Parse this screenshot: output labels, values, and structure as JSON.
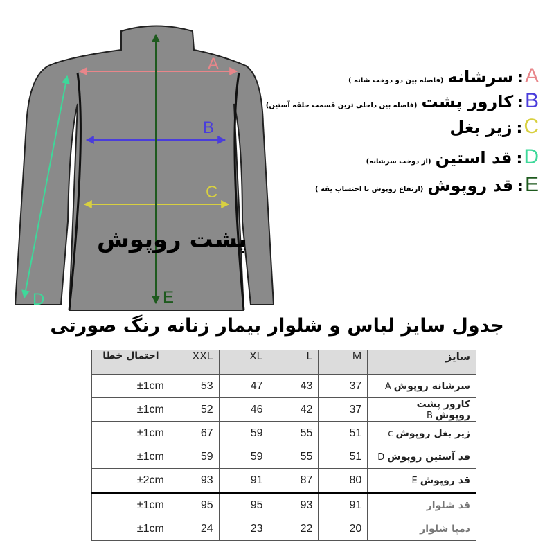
{
  "legend": [
    {
      "letter": "A",
      "name": "سرشانه",
      "note": "(فاصله بین دو دوخت شانه )",
      "color": "#e8868a"
    },
    {
      "letter": "B",
      "name": "کارور پشت",
      "note": "(فاصله بین داخلی ترین قسمت حلقه آستین)",
      "color": "#4a3ddb"
    },
    {
      "letter": "C",
      "name": "زیر بغل",
      "note": "",
      "color": "#d8d040"
    },
    {
      "letter": "D",
      "name": "قد استین",
      "note": "(از دوخت سرشانه)",
      "color": "#3ed89a"
    },
    {
      "letter": "E",
      "name": "قد روپوش",
      "note": "(ارتفاع روپوش با احتساب یقه )",
      "color": "#1e5a1e"
    }
  ],
  "legend_colon": ":",
  "garment": {
    "back_label": "پشت روپوش",
    "fill": "#8a8a8a"
  },
  "title": "جدول سایز لباس و شلوار بیمار زنانه رنگ صورتی",
  "table": {
    "headers": {
      "label": "سایز",
      "sizes": [
        "M",
        "L",
        "XL",
        "XXL"
      ],
      "error": "احتمال خطا"
    },
    "rows": [
      {
        "label": "سرشانه روپوش",
        "code": "A",
        "values": [
          "37",
          "43",
          "47",
          "53"
        ],
        "error": "±1cm"
      },
      {
        "label": "کارور پشت روپوش",
        "code": "B",
        "values": [
          "37",
          "42",
          "46",
          "52"
        ],
        "error": "±1cm"
      },
      {
        "label": "زیر بغل روپوش",
        "code": "c",
        "values": [
          "51",
          "55",
          "59",
          "67"
        ],
        "error": "±1cm"
      },
      {
        "label": "قد آستین روپوش",
        "code": "D",
        "values": [
          "51",
          "55",
          "59",
          "59"
        ],
        "error": "±1cm"
      },
      {
        "label": "قد روپوش",
        "code": "E",
        "values": [
          "80",
          "87",
          "91",
          "93"
        ],
        "error": "±2cm"
      },
      {
        "label": "قد شلوار",
        "code": "",
        "values": [
          "91",
          "93",
          "95",
          "95"
        ],
        "error": "±1cm"
      },
      {
        "label": "دمپا شلوار",
        "code": "",
        "values": [
          "20",
          "22",
          "23",
          "24"
        ],
        "error": "±1cm"
      }
    ]
  }
}
